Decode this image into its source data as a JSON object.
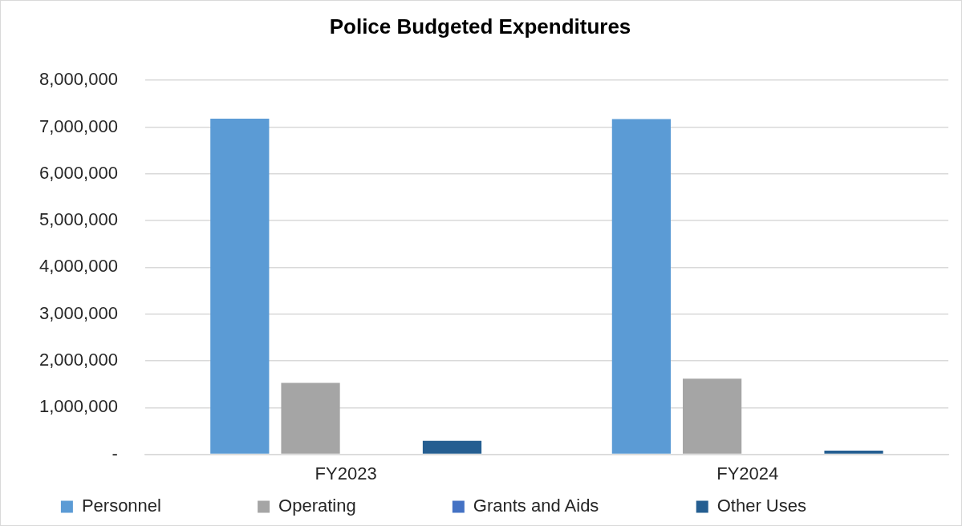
{
  "chart_data": {
    "type": "bar",
    "title": "Police Budgeted Expenditures",
    "categories": [
      "FY2023",
      "FY2024"
    ],
    "series": [
      {
        "name": "Personnel",
        "color": "#5b9bd5",
        "values": [
          7180000,
          7170000
        ]
      },
      {
        "name": "Operating",
        "color": "#a5a5a5",
        "values": [
          1530000,
          1620000
        ]
      },
      {
        "name": "Grants and Aids",
        "color": "#4472c4",
        "values": [
          0,
          0
        ]
      },
      {
        "name": "Other Uses",
        "color": "#255e91",
        "values": [
          290000,
          80000
        ]
      }
    ],
    "ylim": [
      0,
      8000000
    ],
    "yticks": [
      {
        "value": 0,
        "label": "-"
      },
      {
        "value": 1000000,
        "label": "1,000,000"
      },
      {
        "value": 2000000,
        "label": "2,000,000"
      },
      {
        "value": 3000000,
        "label": "3,000,000"
      },
      {
        "value": 4000000,
        "label": "4,000,000"
      },
      {
        "value": 5000000,
        "label": "5,000,000"
      },
      {
        "value": 6000000,
        "label": "6,000,000"
      },
      {
        "value": 7000000,
        "label": "7,000,000"
      },
      {
        "value": 8000000,
        "label": "8,000,000"
      }
    ],
    "grid": "y",
    "legend": "bottom"
  }
}
